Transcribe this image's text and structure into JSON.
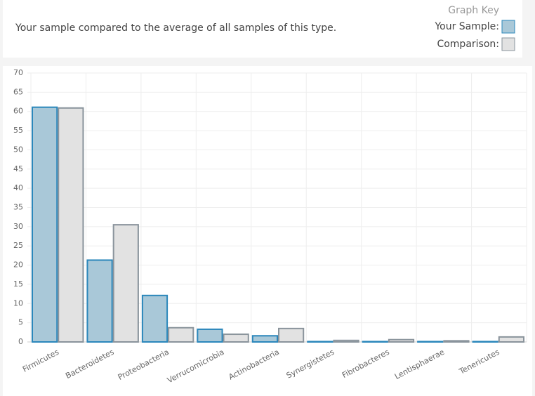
{
  "chart_data": {
    "type": "bar",
    "title": "Your sample compared to the average of all samples of this type.",
    "legend_title": "Graph Key",
    "categories": [
      "Firmicutes",
      "Bacteroidetes",
      "Proteobacteria",
      "Verrucomicrobia",
      "Actinobacteria",
      "Synergistetes",
      "Fibrobacteres",
      "Lentisphaerae",
      "Tenericutes"
    ],
    "series": [
      {
        "name": "Your Sample:",
        "color": "#a9c8d8",
        "border_color": "#2b87bb",
        "values": [
          61.1,
          21.3,
          12.1,
          3.3,
          1.6,
          0.1,
          0.1,
          0.1,
          0.1
        ]
      },
      {
        "name": "Comparison:",
        "color": "#e2e2e2",
        "border_color": "#8a949c",
        "values": [
          60.9,
          30.5,
          3.7,
          2.0,
          3.5,
          0.4,
          0.6,
          0.3,
          1.3
        ]
      }
    ],
    "ylim": [
      0,
      70
    ],
    "yticks": [
      0,
      5,
      10,
      15,
      20,
      25,
      30,
      35,
      40,
      45,
      50,
      55,
      60,
      65,
      70
    ],
    "grid": true
  }
}
